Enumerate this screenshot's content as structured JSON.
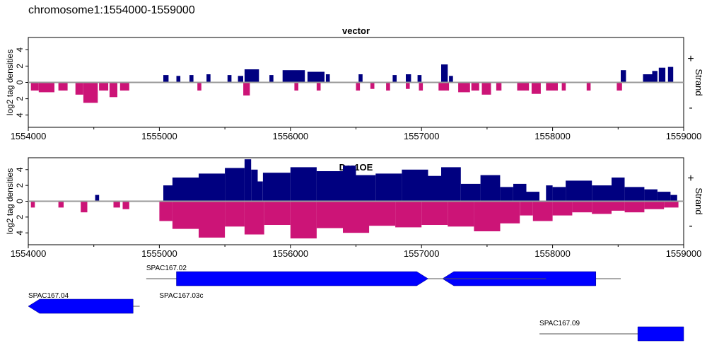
{
  "page": {
    "title": "chromosome1:1554000-1559000"
  },
  "colors": {
    "plus": "#000080",
    "minus": "#cc1477",
    "gene": "#0000ff",
    "midline": "#999999",
    "axis": "#000000"
  },
  "chart_data": [
    {
      "type": "area",
      "title": "vector",
      "ylabel": "log2 tag densities",
      "xlim": [
        1554000,
        1559000
      ],
      "ylim": [
        -5.5,
        5.5
      ],
      "yticks": [
        4,
        2,
        0,
        2,
        4
      ],
      "xticks": [
        "1554000",
        "1555000",
        "1556000",
        "1557000",
        "1558000",
        "1559000"
      ],
      "strand_label": "Strand",
      "plus_label": "+",
      "minus_label": "-",
      "series": [
        {
          "name": "+",
          "segments": [
            {
              "x": [
                1555030,
                1555070
              ],
              "y": 0.9
            },
            {
              "x": [
                1555130,
                1555160
              ],
              "y": 0.8
            },
            {
              "x": [
                1555230,
                1555260
              ],
              "y": 0.9
            },
            {
              "x": [
                1555360,
                1555390
              ],
              "y": 1.0
            },
            {
              "x": [
                1555520,
                1555550
              ],
              "y": 0.9
            },
            {
              "x": [
                1555600,
                1555640
              ],
              "y": 0.8
            },
            {
              "x": [
                1555650,
                1555760
              ],
              "y": 1.6
            },
            {
              "x": [
                1555840,
                1555870
              ],
              "y": 0.9
            },
            {
              "x": [
                1555940,
                1556110
              ],
              "y": 1.5
            },
            {
              "x": [
                1556130,
                1556260
              ],
              "y": 1.3
            },
            {
              "x": [
                1556270,
                1556300
              ],
              "y": 1.0
            },
            {
              "x": [
                1556520,
                1556550
              ],
              "y": 1.0
            },
            {
              "x": [
                1556780,
                1556810
              ],
              "y": 0.9
            },
            {
              "x": [
                1556880,
                1556920
              ],
              "y": 1.0
            },
            {
              "x": [
                1556970,
                1557000
              ],
              "y": 0.9
            },
            {
              "x": [
                1557150,
                1557200
              ],
              "y": 2.2
            },
            {
              "x": [
                1557210,
                1557240
              ],
              "y": 0.8
            },
            {
              "x": [
                1558520,
                1558560
              ],
              "y": 1.5
            },
            {
              "x": [
                1558690,
                1558760
              ],
              "y": 1.0
            },
            {
              "x": [
                1558760,
                1558800
              ],
              "y": 1.4
            },
            {
              "x": [
                1558810,
                1558860
              ],
              "y": 1.8
            },
            {
              "x": [
                1558880,
                1558920
              ],
              "y": 1.9
            }
          ]
        },
        {
          "name": "-",
          "segments": [
            {
              "x": [
                1554020,
                1554080
              ],
              "y": -1.0
            },
            {
              "x": [
                1554080,
                1554200
              ],
              "y": -1.2
            },
            {
              "x": [
                1554230,
                1554300
              ],
              "y": -1.0
            },
            {
              "x": [
                1554360,
                1554420
              ],
              "y": -1.5
            },
            {
              "x": [
                1554420,
                1554530
              ],
              "y": -2.5
            },
            {
              "x": [
                1554540,
                1554610
              ],
              "y": -1.0
            },
            {
              "x": [
                1554620,
                1554680
              ],
              "y": -1.8
            },
            {
              "x": [
                1554700,
                1554770
              ],
              "y": -1.0
            },
            {
              "x": [
                1555290,
                1555320
              ],
              "y": -1.0
            },
            {
              "x": [
                1555640,
                1555690
              ],
              "y": -1.6
            },
            {
              "x": [
                1556030,
                1556060
              ],
              "y": -1.0
            },
            {
              "x": [
                1556200,
                1556230
              ],
              "y": -1.0
            },
            {
              "x": [
                1556500,
                1556530
              ],
              "y": -1.0
            },
            {
              "x": [
                1556610,
                1556640
              ],
              "y": -0.8
            },
            {
              "x": [
                1556730,
                1556760
              ],
              "y": -1.0
            },
            {
              "x": [
                1556880,
                1556910
              ],
              "y": -0.8
            },
            {
              "x": [
                1556980,
                1557010
              ],
              "y": -1.0
            },
            {
              "x": [
                1557130,
                1557210
              ],
              "y": -1.0
            },
            {
              "x": [
                1557280,
                1557370
              ],
              "y": -1.2
            },
            {
              "x": [
                1557380,
                1557440
              ],
              "y": -1.0
            },
            {
              "x": [
                1557460,
                1557530
              ],
              "y": -1.5
            },
            {
              "x": [
                1557570,
                1557610
              ],
              "y": -1.0
            },
            {
              "x": [
                1557730,
                1557820
              ],
              "y": -1.0
            },
            {
              "x": [
                1557840,
                1557910
              ],
              "y": -1.4
            },
            {
              "x": [
                1557950,
                1558040
              ],
              "y": -1.0
            },
            {
              "x": [
                1558070,
                1558100
              ],
              "y": -1.0
            },
            {
              "x": [
                1558260,
                1558290
              ],
              "y": -1.0
            },
            {
              "x": [
                1558490,
                1558530
              ],
              "y": -1.0
            }
          ]
        }
      ]
    },
    {
      "type": "area",
      "title": "Dcr1OE",
      "ylabel": "log2 tag densities",
      "xlim": [
        1554000,
        1559000
      ],
      "ylim": [
        -5.5,
        5.5
      ],
      "yticks": [
        4,
        2,
        0,
        2,
        4
      ],
      "xticks": [
        "1554000",
        "1555000",
        "1556000",
        "1557000",
        "1558000",
        "1559000"
      ],
      "strand_label": "Strand",
      "plus_label": "+",
      "minus_label": "-",
      "series": [
        {
          "name": "+",
          "segments": [
            {
              "x": [
                1554510,
                1554540
              ],
              "y": 0.8
            },
            {
              "x": [
                1555030,
                1555100
              ],
              "y": 2.0
            },
            {
              "x": [
                1555100,
                1555300
              ],
              "y": 3.0
            },
            {
              "x": [
                1555300,
                1555500
              ],
              "y": 3.5
            },
            {
              "x": [
                1555500,
                1555650
              ],
              "y": 4.2
            },
            {
              "x": [
                1555650,
                1555700
              ],
              "y": 5.3
            },
            {
              "x": [
                1555700,
                1555750
              ],
              "y": 4.0
            },
            {
              "x": [
                1555750,
                1555790
              ],
              "y": 2.5
            },
            {
              "x": [
                1555790,
                1556000
              ],
              "y": 3.6
            },
            {
              "x": [
                1556000,
                1556200
              ],
              "y": 4.3
            },
            {
              "x": [
                1556200,
                1556400
              ],
              "y": 3.8
            },
            {
              "x": [
                1556400,
                1556500
              ],
              "y": 4.5
            },
            {
              "x": [
                1556500,
                1556650
              ],
              "y": 3.3
            },
            {
              "x": [
                1556650,
                1556850
              ],
              "y": 3.5
            },
            {
              "x": [
                1556850,
                1557050
              ],
              "y": 4.0
            },
            {
              "x": [
                1557050,
                1557150
              ],
              "y": 3.2
            },
            {
              "x": [
                1557150,
                1557300
              ],
              "y": 4.3
            },
            {
              "x": [
                1557300,
                1557450
              ],
              "y": 2.2
            },
            {
              "x": [
                1557450,
                1557600
              ],
              "y": 3.3
            },
            {
              "x": [
                1557600,
                1557700
              ],
              "y": 1.8
            },
            {
              "x": [
                1557700,
                1557800
              ],
              "y": 2.2
            },
            {
              "x": [
                1557800,
                1557900
              ],
              "y": 1.2
            },
            {
              "x": [
                1557950,
                1558000
              ],
              "y": 2.0
            },
            {
              "x": [
                1558000,
                1558100
              ],
              "y": 1.8
            },
            {
              "x": [
                1558100,
                1558300
              ],
              "y": 2.6
            },
            {
              "x": [
                1558300,
                1558450
              ],
              "y": 2.0
            },
            {
              "x": [
                1558450,
                1558550
              ],
              "y": 3.0
            },
            {
              "x": [
                1558550,
                1558700
              ],
              "y": 1.8
            },
            {
              "x": [
                1558700,
                1558800
              ],
              "y": 1.5
            },
            {
              "x": [
                1558800,
                1558900
              ],
              "y": 1.2
            },
            {
              "x": [
                1558900,
                1558950
              ],
              "y": 0.8
            }
          ]
        },
        {
          "name": "-",
          "segments": [
            {
              "x": [
                1554020,
                1554050
              ],
              "y": -0.8
            },
            {
              "x": [
                1554230,
                1554270
              ],
              "y": -0.8
            },
            {
              "x": [
                1554400,
                1554450
              ],
              "y": -1.4
            },
            {
              "x": [
                1554650,
                1554700
              ],
              "y": -0.8
            },
            {
              "x": [
                1554720,
                1554770
              ],
              "y": -1.0
            },
            {
              "x": [
                1555000,
                1555100
              ],
              "y": -2.5
            },
            {
              "x": [
                1555100,
                1555300
              ],
              "y": -3.5
            },
            {
              "x": [
                1555300,
                1555500
              ],
              "y": -4.6
            },
            {
              "x": [
                1555500,
                1555650
              ],
              "y": -3.2
            },
            {
              "x": [
                1555650,
                1555800
              ],
              "y": -4.2
            },
            {
              "x": [
                1555800,
                1556000
              ],
              "y": -3.0
            },
            {
              "x": [
                1556000,
                1556200
              ],
              "y": -4.7
            },
            {
              "x": [
                1556200,
                1556400
              ],
              "y": -3.4
            },
            {
              "x": [
                1556400,
                1556600
              ],
              "y": -4.0
            },
            {
              "x": [
                1556600,
                1556800
              ],
              "y": -3.1
            },
            {
              "x": [
                1556800,
                1557000
              ],
              "y": -3.3
            },
            {
              "x": [
                1557000,
                1557200
              ],
              "y": -3.0
            },
            {
              "x": [
                1557200,
                1557400
              ],
              "y": -3.2
            },
            {
              "x": [
                1557400,
                1557600
              ],
              "y": -3.8
            },
            {
              "x": [
                1557600,
                1557750
              ],
              "y": -2.8
            },
            {
              "x": [
                1557750,
                1557850
              ],
              "y": -1.8
            },
            {
              "x": [
                1557850,
                1558000
              ],
              "y": -2.5
            },
            {
              "x": [
                1558000,
                1558150
              ],
              "y": -1.8
            },
            {
              "x": [
                1558150,
                1558300
              ],
              "y": -1.4
            },
            {
              "x": [
                1558300,
                1558450
              ],
              "y": -1.6
            },
            {
              "x": [
                1558450,
                1558550
              ],
              "y": -1.2
            },
            {
              "x": [
                1558550,
                1558700
              ],
              "y": -1.4
            },
            {
              "x": [
                1558700,
                1558850
              ],
              "y": -1.0
            },
            {
              "x": [
                1558850,
                1558960
              ],
              "y": -0.8
            }
          ]
        }
      ]
    }
  ],
  "genes": [
    {
      "name": "SPAC167.02",
      "line": [
        1554900,
        1558520
      ],
      "block": [
        1557160,
        1558330
      ],
      "direction": "left"
    },
    {
      "name": "SPAC167.04",
      "line": [
        1554000,
        1554850
      ],
      "block": [
        1554000,
        1554800
      ],
      "direction": "left"
    },
    {
      "name": "SPAC167.03c",
      "line": [
        1555000,
        1557950
      ],
      "block": [
        1555130,
        1557050
      ],
      "direction": "right"
    },
    {
      "name": "SPAC167.09",
      "line": [
        1557900,
        1559000
      ],
      "block": [
        1558650,
        1559000
      ],
      "direction": "none"
    }
  ]
}
